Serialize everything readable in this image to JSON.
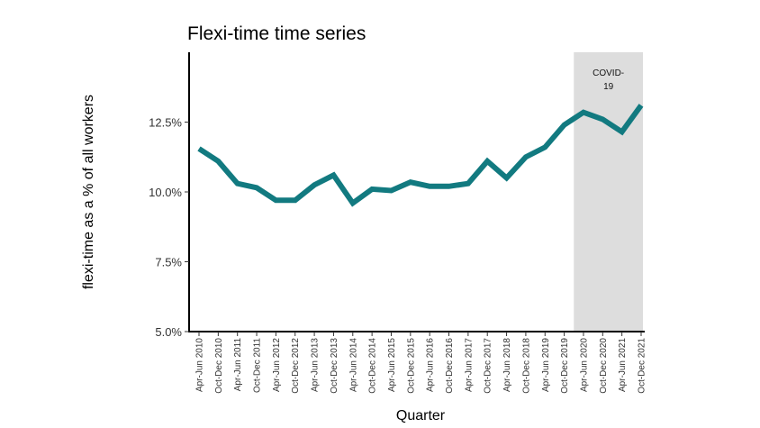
{
  "chart_data": {
    "type": "line",
    "title": "Flexi-time time series",
    "xlabel": "Quarter",
    "ylabel": "flexi-time as a % of all workers",
    "categories": [
      "Apr-Jun 2010",
      "Oct-Dec 2010",
      "Apr-Jun 2011",
      "Oct-Dec 2011",
      "Apr-Jun 2012",
      "Oct-Dec 2012",
      "Apr-Jun 2013",
      "Oct-Dec 2013",
      "Apr-Jun 2014",
      "Oct-Dec 2014",
      "Apr-Jun 2015",
      "Oct-Dec 2015",
      "Apr-Jun 2016",
      "Oct-Dec 2016",
      "Apr-Jun 2017",
      "Oct-Dec 2017",
      "Apr-Jun 2018",
      "Oct-Dec 2018",
      "Apr-Jun 2019",
      "Oct-Dec 2019",
      "Apr-Jun 2020",
      "Oct-Dec 2020",
      "Apr-Jun 2021",
      "Oct-Dec 2021"
    ],
    "series": [
      {
        "values": [
          11.55,
          11.1,
          10.3,
          10.15,
          9.7,
          9.7,
          10.25,
          10.6,
          9.6,
          10.1,
          10.05,
          10.35,
          10.2,
          10.2,
          10.3,
          11.1,
          10.5,
          11.25,
          11.6,
          12.4,
          12.85,
          12.6,
          12.15,
          13.1
        ],
        "color": "#127a80"
      }
    ],
    "ylim": [
      5.0,
      15.0
    ],
    "yticks": [
      5.0,
      7.5,
      10.0,
      12.5
    ],
    "ytick_labels": [
      "5.0%",
      "7.5%",
      "10.0%",
      "12.5%"
    ],
    "grid": false,
    "shaded_region": {
      "from": "Apr-Jun 2020",
      "to": "Oct-Dec 2021",
      "label_lines": [
        "COVID-",
        "19"
      ],
      "color": "#dddddd"
    }
  }
}
